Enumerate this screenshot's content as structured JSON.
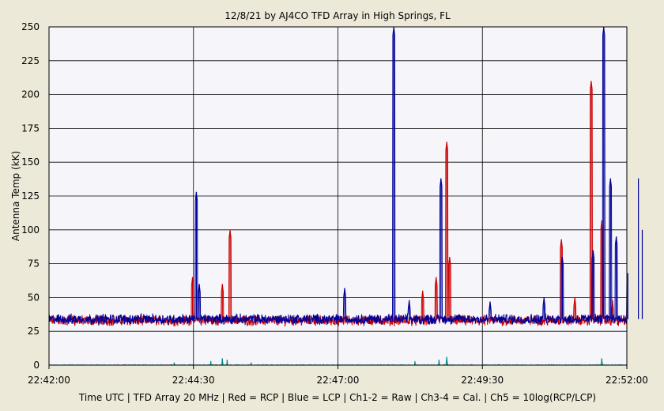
{
  "chart_data": {
    "type": "line",
    "title": "12/8/21  by  AJ4CO TFD Array  in  High Springs, FL",
    "ylabel": "Antenna Temp (kK)",
    "xlabel": "Time UTC | TFD Array 20 MHz | Red = RCP | Blue = LCP | Ch1-2 = Raw | Ch3-4 = Cal. | Ch5 = 10log(RCP/LCP)",
    "xlim": [
      "22:42:00",
      "22:52:00"
    ],
    "ylim": [
      0,
      250
    ],
    "y_ticks": [
      "0",
      "25",
      "50",
      "75",
      "100",
      "125",
      "150",
      "175",
      "200",
      "225",
      "250"
    ],
    "x_ticks": [
      "22:42:00",
      "22:44:30",
      "22:47:00",
      "22:49:30",
      "22:52:00"
    ],
    "grid": true,
    "colors": {
      "rcp": "#cc0000",
      "lcp": "#000099",
      "ratio": "#008888",
      "plot_bg": "#f5f5fa",
      "frame_bg": "#ece9d8"
    },
    "series": [
      {
        "name": "Red = RCP",
        "baseline": 33,
        "points": [
          [
            "22:44:29",
            65
          ],
          [
            "22:44:35",
            35
          ],
          [
            "22:45:00",
            60
          ],
          [
            "22:45:08",
            100
          ],
          [
            "22:45:12",
            35
          ],
          [
            "22:48:28",
            55
          ],
          [
            "22:48:42",
            65
          ],
          [
            "22:48:53",
            165
          ],
          [
            "22:48:56",
            80
          ],
          [
            "22:50:52",
            93
          ],
          [
            "22:51:06",
            50
          ],
          [
            "22:51:23",
            210
          ],
          [
            "22:51:34",
            107
          ],
          [
            "22:51:45",
            48
          ]
        ]
      },
      {
        "name": "Blue = LCP",
        "baseline": 34,
        "points": [
          [
            "22:44:33",
            128
          ],
          [
            "22:44:36",
            60
          ],
          [
            "22:47:07",
            57
          ],
          [
            "22:47:58",
            250
          ],
          [
            "22:48:14",
            48
          ],
          [
            "22:48:47",
            138
          ],
          [
            "22:49:38",
            47
          ],
          [
            "22:50:34",
            50
          ],
          [
            "22:50:53",
            80
          ],
          [
            "22:51:25",
            85
          ],
          [
            "22:51:36",
            250
          ],
          [
            "22:51:43",
            138
          ],
          [
            "22:51:49",
            95
          ],
          [
            "22:52:01",
            68
          ],
          [
            "22:52:12",
            138
          ],
          [
            "22:52:16",
            100
          ]
        ]
      },
      {
        "name": "Ch5 = 10log(RCP/LCP)",
        "baseline": 0,
        "points": [
          [
            "22:44:10",
            2
          ],
          [
            "22:44:48",
            3
          ],
          [
            "22:45:00",
            5
          ],
          [
            "22:45:05",
            4
          ],
          [
            "22:45:30",
            2
          ],
          [
            "22:48:20",
            3
          ],
          [
            "22:48:45",
            4
          ],
          [
            "22:48:53",
            6
          ],
          [
            "22:51:34",
            5
          ]
        ]
      }
    ]
  }
}
